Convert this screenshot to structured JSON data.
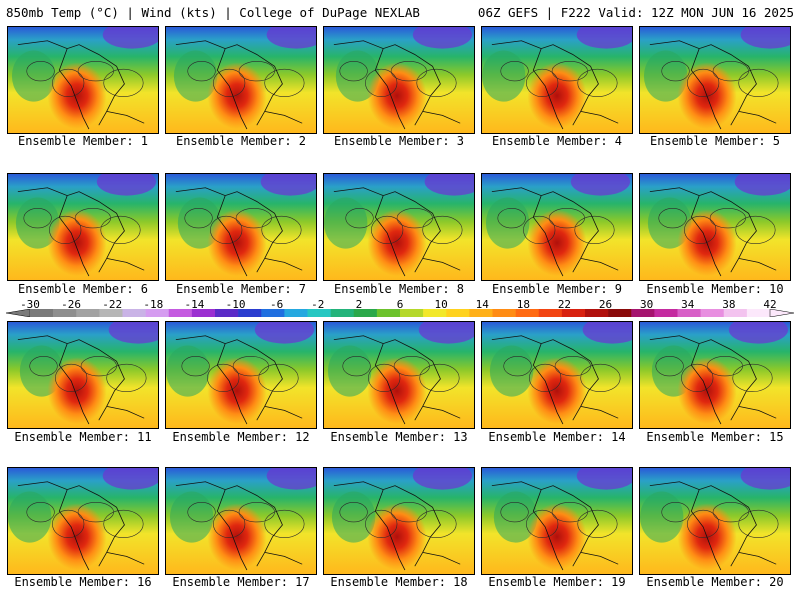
{
  "header": {
    "left_title": "850mb Temp (°C) | Wind (kts) | College of DuPage NEXLAB",
    "right_title": "06Z GEFS | F222 Valid: 12Z MON JUN 16 2025"
  },
  "colorbar": {
    "tick_labels": [
      "-30",
      "-26",
      "-22",
      "-18",
      "-14",
      "-10",
      "-6",
      "-2",
      "2",
      "6",
      "10",
      "14",
      "18",
      "22",
      "26",
      "30",
      "34",
      "38",
      "42"
    ],
    "colors": [
      "#7a7a7a",
      "#8e8e8e",
      "#a2a2a2",
      "#b6b6b6",
      "#c9b3e6",
      "#d59cf0",
      "#c45ae0",
      "#9b2fd1",
      "#5a2bc7",
      "#2a3dcf",
      "#1f6fe0",
      "#25a8e0",
      "#26c7c2",
      "#23b37a",
      "#2aa84a",
      "#6cc22c",
      "#b5d82a",
      "#f2e82a",
      "#ffd21e",
      "#ffb018",
      "#ff8c14",
      "#ff6a12",
      "#f24412",
      "#d8210f",
      "#b0100c",
      "#8a0a0a",
      "#a5146e",
      "#c42ba0",
      "#d85fc7",
      "#e88fe0",
      "#f3c3ef",
      "#fce8fb"
    ]
  },
  "panels": [
    {
      "caption": "Ensemble Member: 1"
    },
    {
      "caption": "Ensemble Member: 2"
    },
    {
      "caption": "Ensemble Member: 3"
    },
    {
      "caption": "Ensemble Member: 4"
    },
    {
      "caption": "Ensemble Member: 5"
    },
    {
      "caption": "Ensemble Member: 6"
    },
    {
      "caption": "Ensemble Member: 7"
    },
    {
      "caption": "Ensemble Member: 8"
    },
    {
      "caption": "Ensemble Member: 9"
    },
    {
      "caption": "Ensemble Member: 10"
    },
    {
      "caption": "Ensemble Member: 11"
    },
    {
      "caption": "Ensemble Member: 12"
    },
    {
      "caption": "Ensemble Member: 13"
    },
    {
      "caption": "Ensemble Member: 14"
    },
    {
      "caption": "Ensemble Member: 15"
    },
    {
      "caption": "Ensemble Member: 16"
    },
    {
      "caption": "Ensemble Member: 17"
    },
    {
      "caption": "Ensemble Member: 18"
    },
    {
      "caption": "Ensemble Member: 19"
    },
    {
      "caption": "Ensemble Member: 20"
    }
  ]
}
